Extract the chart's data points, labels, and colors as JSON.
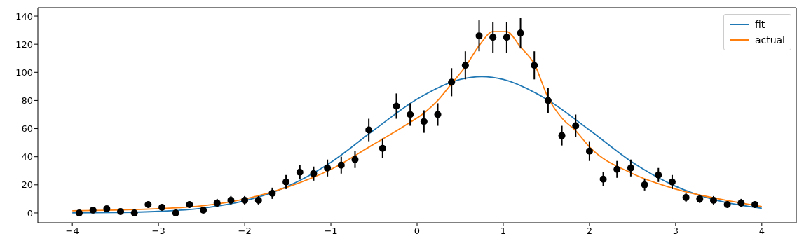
{
  "chart_data": {
    "type": "line",
    "legend": "top right",
    "grid": false,
    "xlim": [
      -4.4,
      4.4
    ],
    "xticks": [
      -4,
      -3,
      -2,
      -1,
      0,
      1,
      2,
      3,
      4
    ],
    "ylim": [
      -7,
      146
    ],
    "yticks": [
      0,
      20,
      40,
      60,
      80,
      100,
      120,
      140
    ],
    "series": [
      {
        "name": "fit",
        "color": "#1f77b4",
        "marker": "none",
        "x": [
          -4,
          -3.5,
          -3,
          -2.5,
          -2,
          -1.5,
          -1,
          -0.5,
          0,
          0.5,
          0.75,
          1,
          1.5,
          2,
          2.5,
          3,
          3.5,
          4
        ],
        "values": [
          0.1,
          0.3,
          1.1,
          3.3,
          8.6,
          19,
          36,
          59,
          81,
          95,
          97,
          95,
          81,
          59,
          36,
          19,
          8.6,
          3.3
        ]
      },
      {
        "name": "actual",
        "color": "#ff7f0e",
        "marker": "none",
        "x": [
          -4,
          -3.5,
          -3,
          -2.5,
          -1.92,
          -1.5,
          -1,
          -0.5,
          -0.25,
          -0.08,
          0.08,
          0.24,
          0.4,
          0.56,
          0.72,
          0.88,
          1.04,
          1.2,
          1.36,
          1.52,
          1.68,
          1.84,
          2,
          2.5,
          3,
          3.5,
          4
        ],
        "values": [
          1.5,
          2,
          3,
          5,
          11,
          18.5,
          31,
          49,
          58,
          64.5,
          71,
          80,
          92,
          104,
          119,
          129,
          129,
          118,
          106,
          82,
          67.5,
          58.5,
          47,
          28,
          17,
          10,
          4.5
        ]
      },
      {
        "type": "scatter",
        "color": "#000000",
        "marker": "circle",
        "x": [
          -3.92,
          -3.76,
          -3.6,
          -3.44,
          -3.28,
          -3.12,
          -2.96,
          -2.8,
          -2.64,
          -2.48,
          -2.32,
          -2.16,
          -2,
          -1.84,
          -1.68,
          -1.52,
          -1.36,
          -1.2,
          -1.04,
          -0.88,
          -0.72,
          -0.56,
          -0.4,
          -0.24,
          -0.08,
          0.08,
          0.24,
          0.4,
          0.56,
          0.72,
          0.88,
          1.04,
          1.2,
          1.36,
          1.52,
          1.68,
          1.84,
          2,
          2.16,
          2.32,
          2.48,
          2.64,
          2.8,
          2.96,
          3.12,
          3.28,
          3.44,
          3.6,
          3.76,
          3.92
        ],
        "values": [
          0,
          2,
          3,
          1,
          0,
          6,
          4,
          0,
          6,
          2,
          7,
          9,
          9,
          9,
          14,
          22,
          29,
          28,
          32,
          34,
          38,
          59,
          46,
          76,
          70,
          65,
          70,
          93,
          105,
          126,
          125,
          125,
          128,
          105,
          80,
          55,
          62,
          44,
          24,
          31,
          32,
          20,
          27,
          22,
          11,
          10,
          9,
          6,
          7,
          6
        ],
        "errors": [
          0,
          1,
          2,
          1,
          0,
          2,
          2,
          0,
          2,
          1,
          3,
          3,
          3,
          3,
          4,
          5,
          5,
          5,
          6,
          6,
          6,
          8,
          7,
          9,
          8,
          8,
          8,
          10,
          10,
          11,
          11,
          11,
          11,
          10,
          9,
          7,
          8,
          7,
          5,
          6,
          6,
          4,
          5,
          5,
          3,
          3,
          3,
          2,
          3,
          2
        ]
      }
    ]
  }
}
